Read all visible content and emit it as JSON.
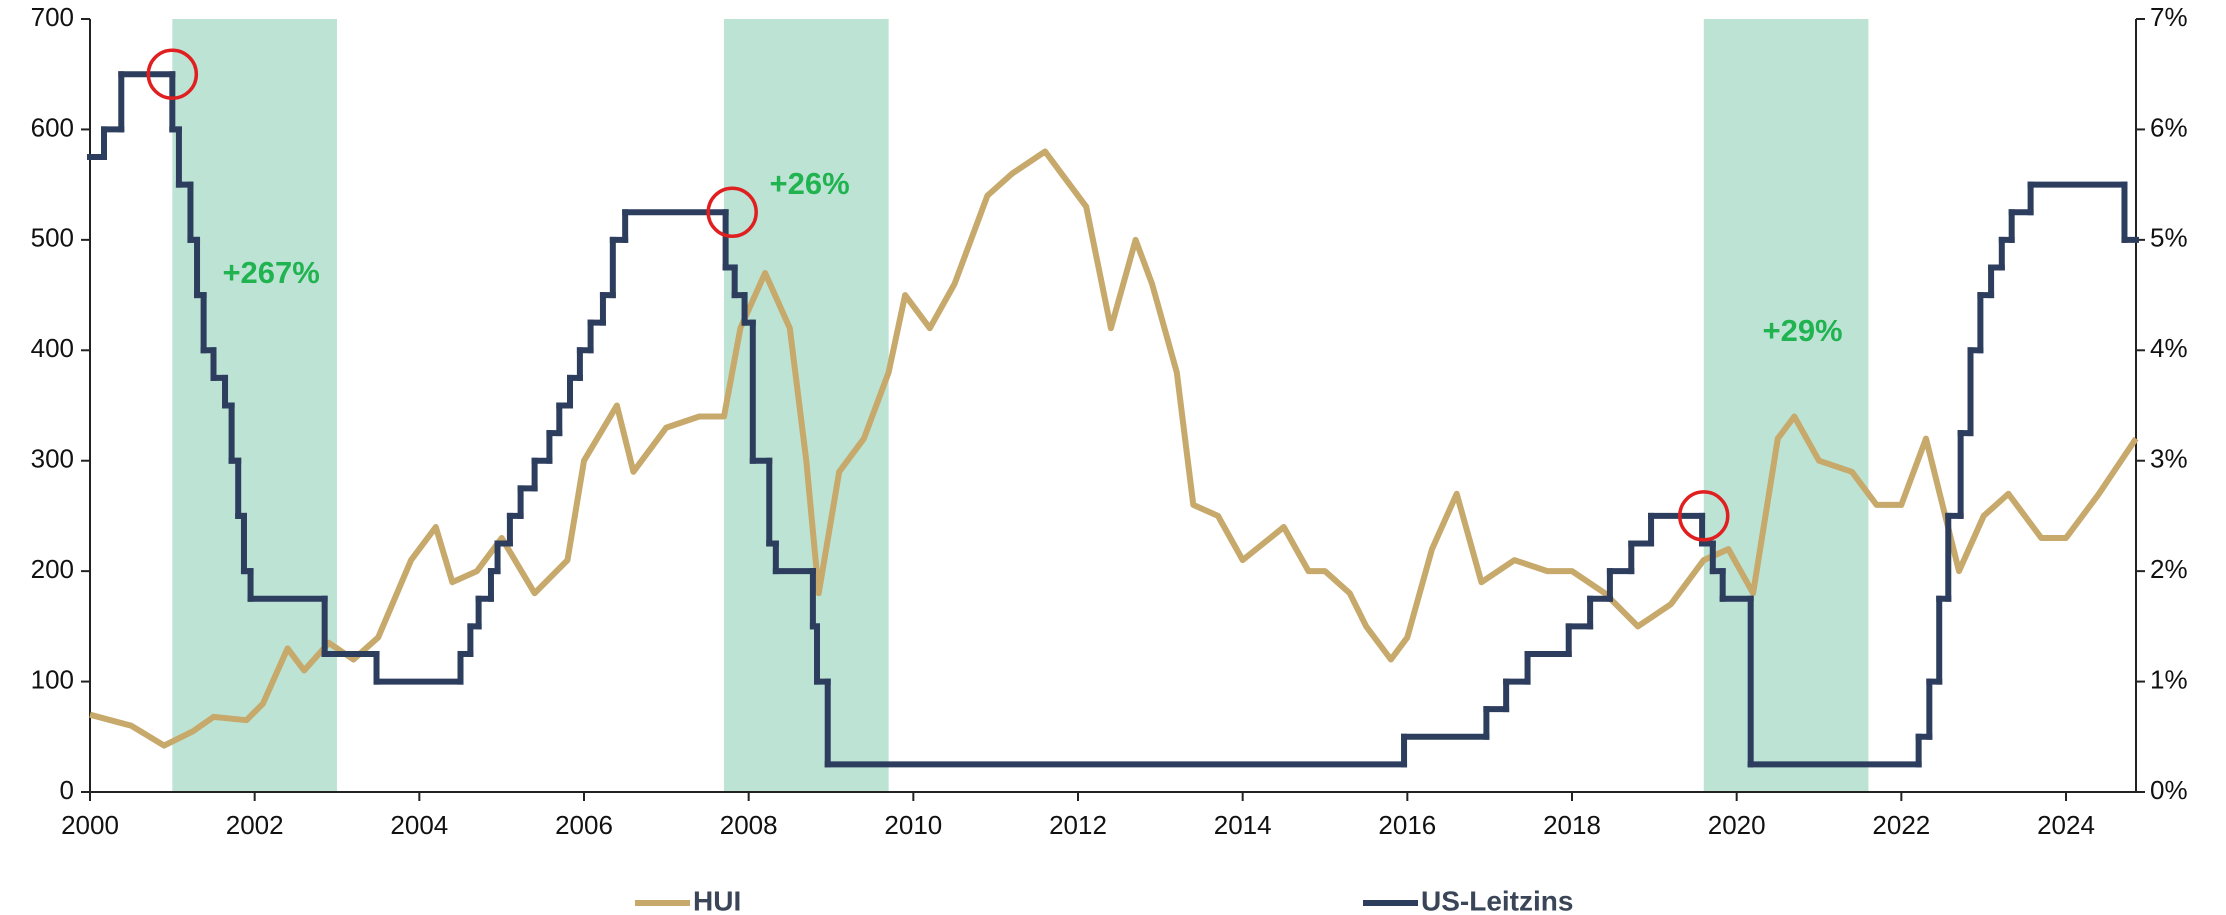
{
  "chart_data": {
    "type": "line",
    "xlim": [
      2000,
      2024.85
    ],
    "xticks": [
      2000,
      2002,
      2004,
      2006,
      2008,
      2010,
      2012,
      2014,
      2016,
      2018,
      2020,
      2022,
      2024
    ],
    "ylim": [
      0,
      700
    ],
    "yticks": [
      0,
      100,
      200,
      300,
      400,
      500,
      600,
      700
    ],
    "y2lim": [
      0,
      7
    ],
    "y2ticks": [
      {
        "value": 0,
        "label": "0%"
      },
      {
        "value": 1,
        "label": "1%"
      },
      {
        "value": 2,
        "label": "2%"
      },
      {
        "value": 3,
        "label": "3%"
      },
      {
        "value": 4,
        "label": "4%"
      },
      {
        "value": 5,
        "label": "5%"
      },
      {
        "value": 6,
        "label": "6%"
      },
      {
        "value": 7,
        "label": "7%"
      }
    ],
    "legend": "bottom",
    "series": [
      {
        "name": "HUI",
        "color": "#c6a96b",
        "axis": "y",
        "x": [
          2000,
          2000.5,
          2000.9,
          2001.25,
          2001.5,
          2001.9,
          2002.1,
          2002.4,
          2002.6,
          2002.9,
          2003.2,
          2003.5,
          2003.9,
          2004.2,
          2004.4,
          2004.7,
          2005.0,
          2005.4,
          2005.8,
          2006.0,
          2006.4,
          2006.6,
          2007.0,
          2007.4,
          2007.7,
          2007.9,
          2008.2,
          2008.5,
          2008.7,
          2008.85,
          2009.1,
          2009.4,
          2009.7,
          2009.9,
          2010.2,
          2010.5,
          2010.9,
          2011.2,
          2011.6,
          2011.8,
          2012.1,
          2012.4,
          2012.7,
          2012.9,
          2013.2,
          2013.4,
          2013.7,
          2014.0,
          2014.5,
          2014.8,
          2015.0,
          2015.3,
          2015.5,
          2015.8,
          2016.0,
          2016.3,
          2016.6,
          2016.9,
          2017.3,
          2017.7,
          2018.0,
          2018.4,
          2018.8,
          2019.2,
          2019.6,
          2019.9,
          2020.2,
          2020.5,
          2020.7,
          2021.0,
          2021.4,
          2021.7,
          2022.0,
          2022.3,
          2022.7,
          2023.0,
          2023.3,
          2023.7,
          2024.0,
          2024.4,
          2024.85
        ],
        "values": [
          70,
          60,
          42,
          55,
          68,
          65,
          80,
          130,
          110,
          135,
          120,
          140,
          210,
          240,
          190,
          200,
          230,
          180,
          210,
          300,
          350,
          290,
          330,
          340,
          340,
          420,
          470,
          420,
          300,
          180,
          290,
          320,
          380,
          450,
          420,
          460,
          540,
          560,
          580,
          560,
          530,
          420,
          500,
          460,
          380,
          260,
          250,
          210,
          240,
          200,
          200,
          180,
          150,
          120,
          140,
          220,
          270,
          190,
          210,
          200,
          200,
          180,
          150,
          170,
          210,
          220,
          180,
          320,
          340,
          300,
          290,
          260,
          260,
          320,
          200,
          250,
          270,
          230,
          230,
          270,
          320
        ]
      },
      {
        "name": "US-Leitzins",
        "color": "#2d3d5e",
        "axis": "y2",
        "step": true,
        "x": [
          2000.0,
          2000.17,
          2000.38,
          2001.0,
          2001.08,
          2001.22,
          2001.3,
          2001.38,
          2001.5,
          2001.64,
          2001.72,
          2001.8,
          2001.87,
          2001.95,
          2002.85,
          2003.48,
          2004.5,
          2004.62,
          2004.72,
          2004.87,
          2004.95,
          2005.1,
          2005.23,
          2005.4,
          2005.58,
          2005.7,
          2005.83,
          2005.95,
          2006.08,
          2006.23,
          2006.35,
          2006.5,
          2007.72,
          2007.83,
          2007.95,
          2008.05,
          2008.25,
          2008.33,
          2008.78,
          2008.83,
          2008.96,
          2015.96,
          2016.96,
          2017.2,
          2017.46,
          2017.96,
          2018.22,
          2018.46,
          2018.72,
          2018.96,
          2019.58,
          2019.71,
          2019.83,
          2020.17,
          2022.21,
          2022.34,
          2022.46,
          2022.57,
          2022.72,
          2022.84,
          2022.96,
          2023.09,
          2023.22,
          2023.34,
          2023.57,
          2024.71
        ],
        "values": [
          5.75,
          6.0,
          6.5,
          6.0,
          5.5,
          5.0,
          4.5,
          4.0,
          3.75,
          3.5,
          3.0,
          2.5,
          2.0,
          1.75,
          1.25,
          1.0,
          1.25,
          1.5,
          1.75,
          2.0,
          2.25,
          2.5,
          2.75,
          3.0,
          3.25,
          3.5,
          3.75,
          4.0,
          4.25,
          4.5,
          5.0,
          5.25,
          4.75,
          4.5,
          4.25,
          3.0,
          2.25,
          2.0,
          1.5,
          1.0,
          0.25,
          0.5,
          0.75,
          1.0,
          1.25,
          1.5,
          1.75,
          2.0,
          2.25,
          2.5,
          2.25,
          2.0,
          1.75,
          0.25,
          0.5,
          1.0,
          1.75,
          2.5,
          3.25,
          4.0,
          4.5,
          4.75,
          5.0,
          5.25,
          5.5,
          5.0
        ]
      }
    ],
    "shaded_periods": [
      {
        "start": 2001.0,
        "end": 2003.0,
        "color": "#bde3d5",
        "label": "+267%"
      },
      {
        "start": 2007.7,
        "end": 2009.7,
        "color": "#bde3d5",
        "label": "+26%"
      },
      {
        "start": 2019.6,
        "end": 2021.6,
        "color": "#bde3d5",
        "label": "+29%"
      }
    ],
    "highlights": [
      {
        "x": 2001.0,
        "y": 6.5,
        "axis": "y2",
        "color": "#e02020"
      },
      {
        "x": 2007.8,
        "y": 5.25,
        "axis": "y2",
        "color": "#e02020"
      },
      {
        "x": 2019.6,
        "y": 2.5,
        "axis": "y2",
        "color": "#e02020"
      }
    ]
  }
}
